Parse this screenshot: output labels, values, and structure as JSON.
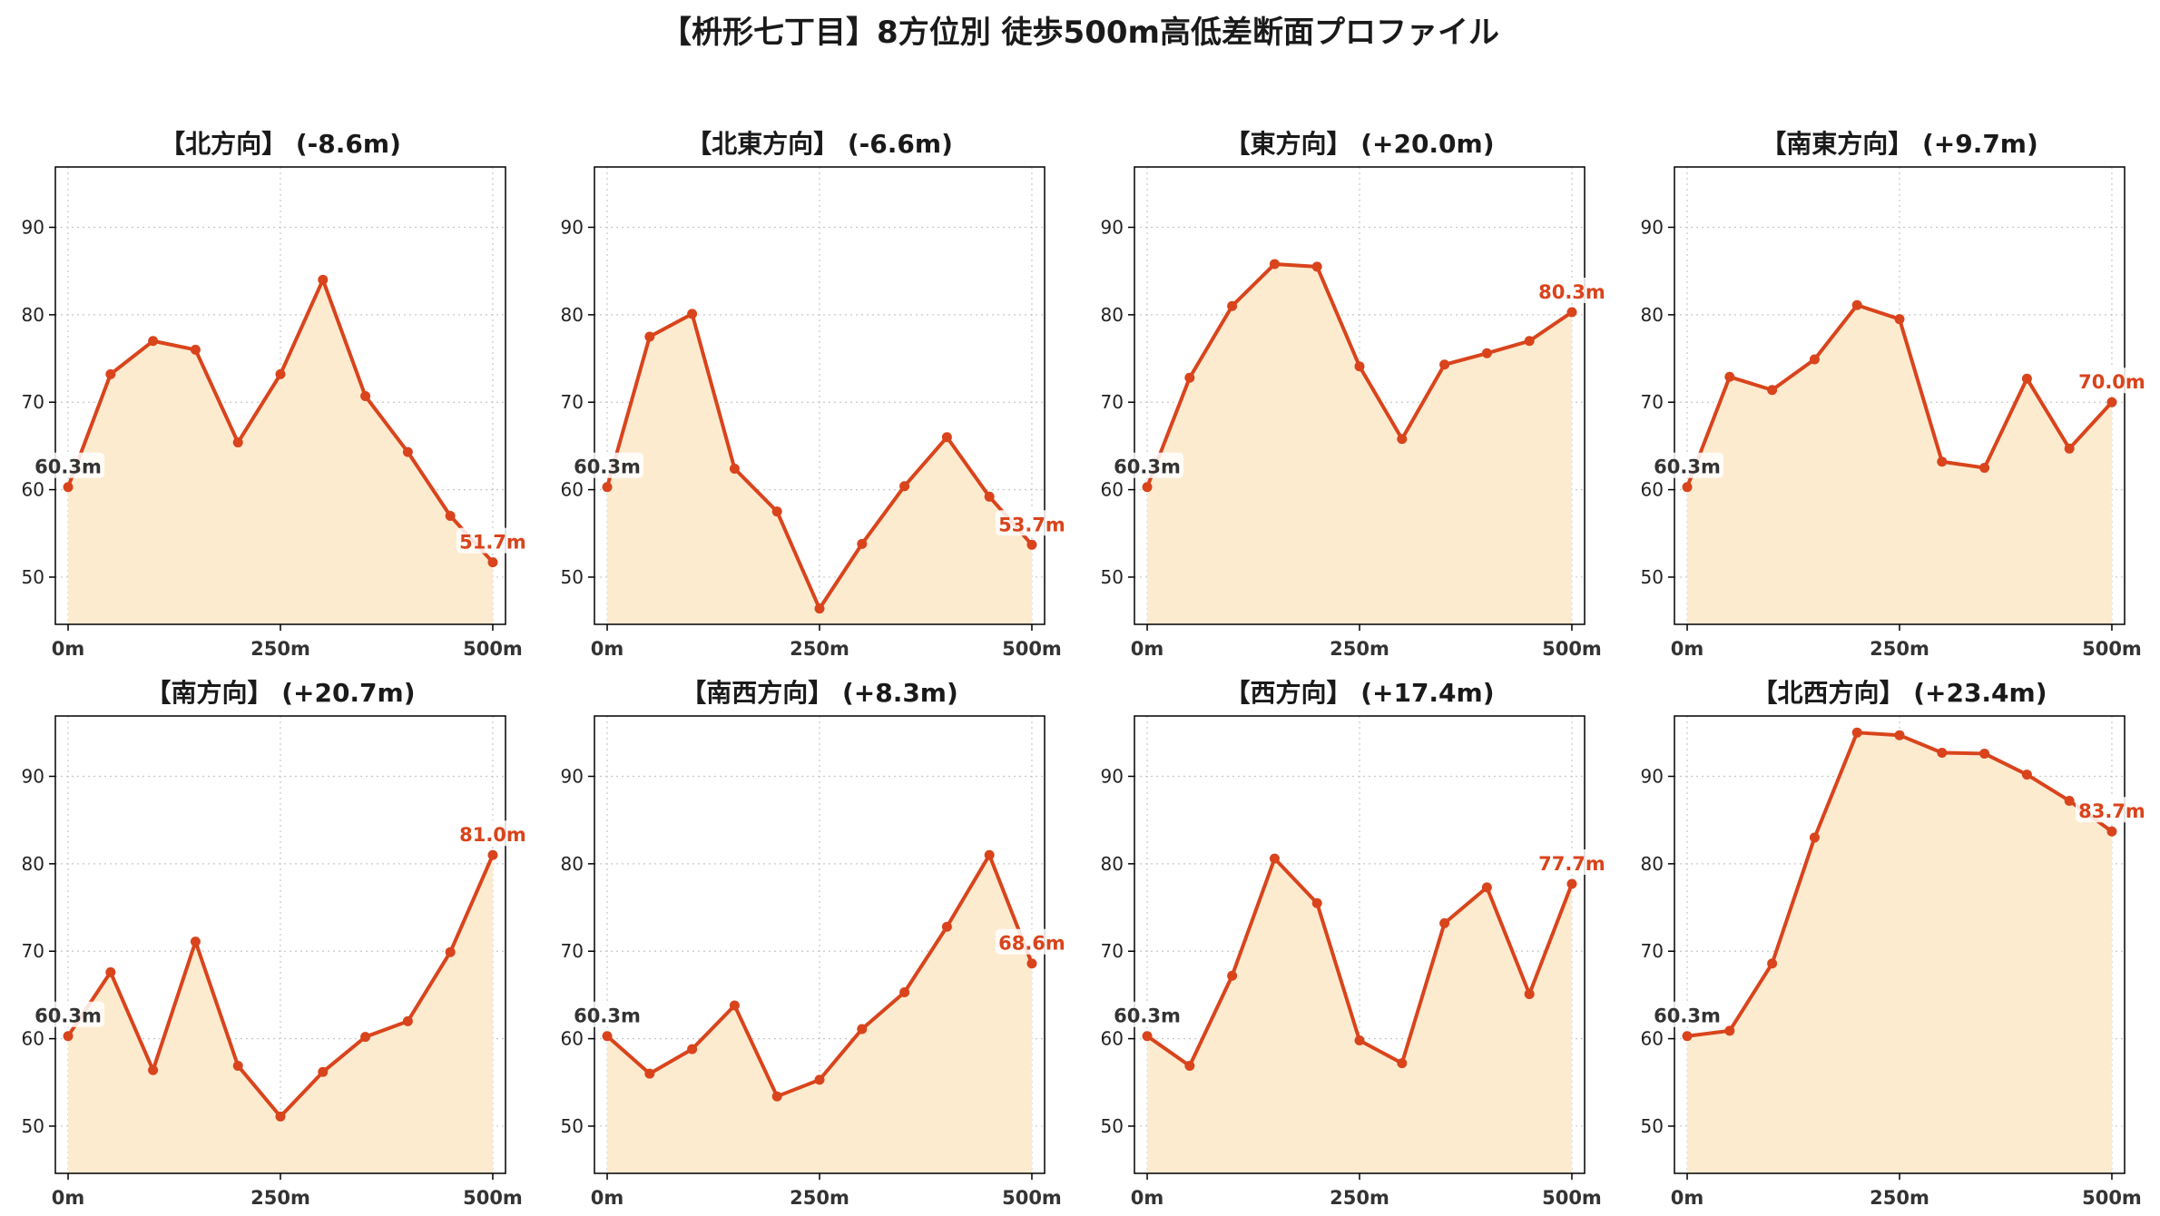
{
  "title": "【枡形七丁目】8方位別 徒歩500m高低差断面プロファイル",
  "colors": {
    "line": "#d9441c",
    "fill": "#fdebd0",
    "grid": "#c8c8c8",
    "start_label": "#333333"
  },
  "axes": {
    "xticks": [
      0,
      250,
      500
    ],
    "xtick_labels": [
      "0m",
      "250m",
      "500m"
    ],
    "yticks": [
      50,
      60,
      70,
      80,
      90
    ],
    "ytick_labels": [
      "50",
      "60",
      "70",
      "80",
      "90"
    ],
    "xlim": [
      -15,
      515
    ],
    "ylim": [
      44.6,
      96.9
    ],
    "grid": "dotted"
  },
  "chart_data": [
    {
      "type": "area",
      "title": "【北方向】 (-8.6m)",
      "x": [
        0,
        50,
        100,
        150,
        200,
        250,
        300,
        350,
        400,
        450,
        500
      ],
      "y": [
        60.3,
        73.2,
        77.0,
        76.0,
        65.4,
        73.2,
        84.0,
        70.7,
        64.3,
        57.0,
        51.7
      ],
      "start_label": "60.3m",
      "end_label": "51.7m"
    },
    {
      "type": "area",
      "title": "【北東方向】 (-6.6m)",
      "x": [
        0,
        50,
        100,
        150,
        200,
        250,
        300,
        350,
        400,
        450,
        500
      ],
      "y": [
        60.3,
        77.5,
        80.1,
        62.4,
        57.5,
        46.4,
        53.8,
        60.4,
        66.0,
        59.2,
        53.7
      ],
      "start_label": "60.3m",
      "end_label": "53.7m"
    },
    {
      "type": "area",
      "title": "【東方向】 (+20.0m)",
      "x": [
        0,
        50,
        100,
        150,
        200,
        250,
        300,
        350,
        400,
        450,
        500
      ],
      "y": [
        60.3,
        72.8,
        81.0,
        85.8,
        85.5,
        74.1,
        65.8,
        74.3,
        75.6,
        77.0,
        80.3
      ],
      "start_label": "60.3m",
      "end_label": "80.3m"
    },
    {
      "type": "area",
      "title": "【南東方向】 (+9.7m)",
      "x": [
        0,
        50,
        100,
        150,
        200,
        250,
        300,
        350,
        400,
        450,
        500
      ],
      "y": [
        60.3,
        72.9,
        71.4,
        74.9,
        81.1,
        79.5,
        63.2,
        62.5,
        72.7,
        64.7,
        70.0
      ],
      "start_label": "60.3m",
      "end_label": "70.0m"
    },
    {
      "type": "area",
      "title": "【南方向】 (+20.7m)",
      "x": [
        0,
        50,
        100,
        150,
        200,
        250,
        300,
        350,
        400,
        450,
        500
      ],
      "y": [
        60.3,
        67.6,
        56.4,
        71.1,
        56.9,
        51.1,
        56.2,
        60.2,
        62.0,
        69.9,
        81.0
      ],
      "start_label": "60.3m",
      "end_label": "81.0m"
    },
    {
      "type": "area",
      "title": "【南西方向】 (+8.3m)",
      "x": [
        0,
        50,
        100,
        150,
        200,
        250,
        300,
        350,
        400,
        450,
        500
      ],
      "y": [
        60.3,
        56.0,
        58.8,
        63.8,
        53.4,
        55.3,
        61.1,
        65.3,
        72.8,
        81.0,
        68.6
      ],
      "start_label": "60.3m",
      "end_label": "68.6m"
    },
    {
      "type": "area",
      "title": "【西方向】 (+17.4m)",
      "x": [
        0,
        50,
        100,
        150,
        200,
        250,
        300,
        350,
        400,
        450,
        500
      ],
      "y": [
        60.3,
        56.9,
        67.2,
        80.6,
        75.5,
        59.8,
        57.2,
        73.2,
        77.3,
        65.1,
        77.7
      ],
      "start_label": "60.3m",
      "end_label": "77.7m"
    },
    {
      "type": "area",
      "title": "【北西方向】 (+23.4m)",
      "x": [
        0,
        50,
        100,
        150,
        200,
        250,
        300,
        350,
        400,
        450,
        500
      ],
      "y": [
        60.3,
        60.9,
        68.6,
        83.0,
        95.0,
        94.7,
        92.7,
        92.6,
        90.2,
        87.2,
        83.7
      ],
      "start_label": "60.3m",
      "end_label": "83.7m"
    }
  ]
}
